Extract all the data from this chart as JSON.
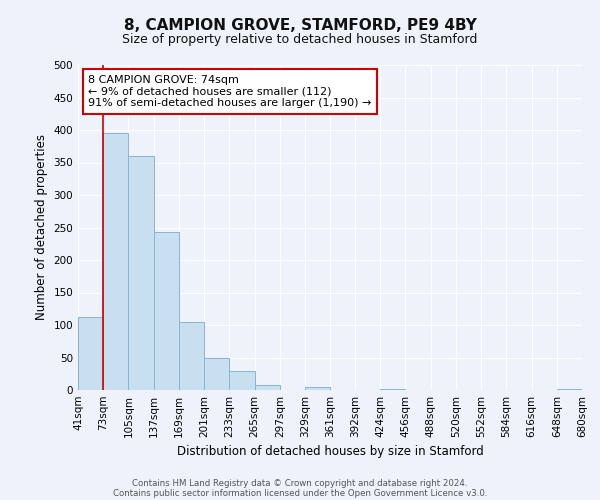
{
  "title": "8, CAMPION GROVE, STAMFORD, PE9 4BY",
  "subtitle": "Size of property relative to detached houses in Stamford",
  "xlabel": "Distribution of detached houses by size in Stamford",
  "ylabel": "Number of detached properties",
  "bar_edges": [
    41,
    73,
    105,
    137,
    169,
    201,
    233,
    265,
    297,
    329,
    361,
    392,
    424,
    456,
    488,
    520,
    552,
    584,
    616,
    648,
    680
  ],
  "bar_heights": [
    112,
    395,
    360,
    243,
    105,
    50,
    30,
    8,
    0,
    5,
    0,
    0,
    2,
    0,
    0,
    0,
    0,
    0,
    0,
    2
  ],
  "tick_labels": [
    "41sqm",
    "73sqm",
    "105sqm",
    "137sqm",
    "169sqm",
    "201sqm",
    "233sqm",
    "265sqm",
    "297sqm",
    "329sqm",
    "361sqm",
    "392sqm",
    "424sqm",
    "456sqm",
    "488sqm",
    "520sqm",
    "552sqm",
    "584sqm",
    "616sqm",
    "648sqm",
    "680sqm"
  ],
  "bar_color": "#c8dff0",
  "bar_edge_color": "#8ab4d4",
  "reference_line_x": 73,
  "reference_line_color": "#cc0000",
  "ylim": [
    0,
    500
  ],
  "yticks": [
    0,
    50,
    100,
    150,
    200,
    250,
    300,
    350,
    400,
    450,
    500
  ],
  "annotation_title": "8 CAMPION GROVE: 74sqm",
  "annotation_line1": "← 9% of detached houses are smaller (112)",
  "annotation_line2": "91% of semi-detached houses are larger (1,190) →",
  "annotation_box_color": "#ffffff",
  "annotation_box_edge": "#cc0000",
  "footer_line1": "Contains HM Land Registry data © Crown copyright and database right 2024.",
  "footer_line2": "Contains public sector information licensed under the Open Government Licence v3.0.",
  "background_color": "#eef2fb",
  "grid_color": "#ffffff",
  "title_fontsize": 11,
  "subtitle_fontsize": 9
}
